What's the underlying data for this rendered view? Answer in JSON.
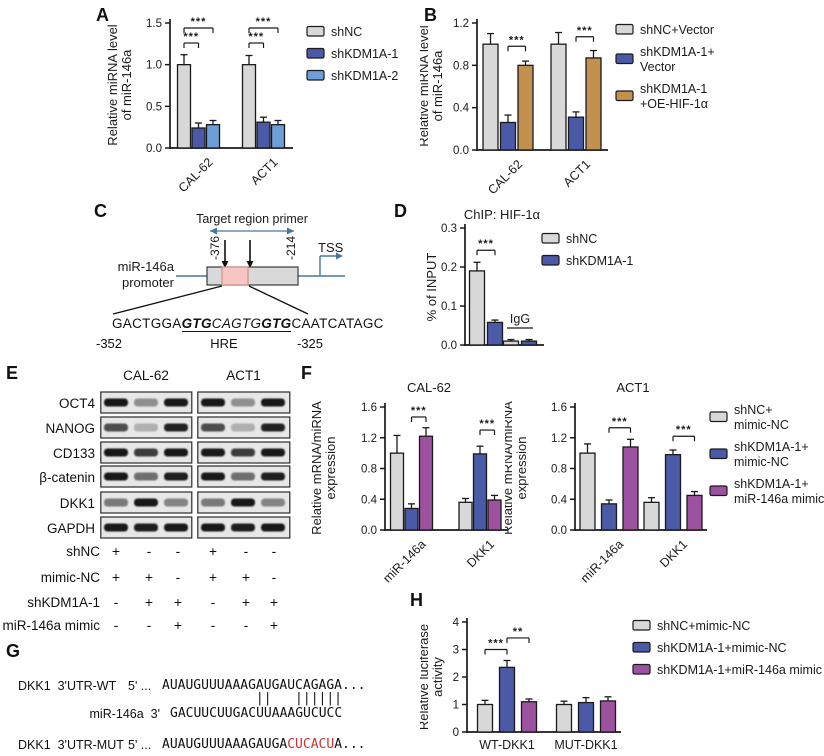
{
  "panels": {
    "A": "A",
    "B": "B",
    "C": "C",
    "D": "D",
    "E": "E",
    "F": "F",
    "G": "G",
    "H": "H"
  },
  "colors": {
    "gray": "#d8d8d8",
    "dark_blue": "#4c59a6",
    "light_blue": "#6d9ed8",
    "tan": "#c3914f",
    "purple": "#9d52a0",
    "axis": "#1a1a1a",
    "diagram_blue": "#46769e",
    "promoter_box": "#d9d9d9",
    "hre_pink": "#f7c6c3",
    "mutation_red": "#c9342c"
  },
  "chart_data": [
    {
      "id": "A",
      "type": "bar",
      "title": "",
      "categories": [
        "CAL-62",
        "ACT1"
      ],
      "series": [
        {
          "name": "shNC",
          "color": "#d8d8d8",
          "values": [
            1.0,
            1.0
          ],
          "errors": [
            0.12,
            0.11
          ]
        },
        {
          "name": "shKDM1A-1",
          "color": "#4c59a6",
          "values": [
            0.24,
            0.31
          ],
          "errors": [
            0.06,
            0.06
          ]
        },
        {
          "name": "shKDM1A-2",
          "color": "#6d9ed8",
          "values": [
            0.28,
            0.28
          ],
          "errors": [
            0.05,
            0.05
          ]
        }
      ],
      "ylabel": [
        "Relative miRNA level",
        "of miR-146a"
      ],
      "ylim": [
        0,
        1.5
      ],
      "yticks": [
        {
          "v": 0,
          "t": "0.0"
        },
        {
          "v": 0.5,
          "t": "0.5"
        },
        {
          "v": 1.0,
          "t": "1.0"
        },
        {
          "v": 1.5,
          "t": "1.5"
        }
      ],
      "significance": [
        {
          "group": 0,
          "from": 0,
          "to": 1,
          "y": 1.26,
          "label": "***"
        },
        {
          "group": 0,
          "from": 0,
          "to": 2,
          "y": 1.44,
          "label": "***"
        },
        {
          "group": 1,
          "from": 0,
          "to": 1,
          "y": 1.26,
          "label": "***"
        },
        {
          "group": 1,
          "from": 0,
          "to": 2,
          "y": 1.44,
          "label": "***"
        }
      ],
      "legend": {
        "items": [
          {
            "color": "#d8d8d8",
            "lines": [
              "shNC"
            ]
          },
          {
            "color": "#4c59a6",
            "lines": [
              "shKDM1A-1"
            ]
          },
          {
            "color": "#6d9ed8",
            "lines": [
              "shKDM1A-2"
            ]
          }
        ]
      },
      "grid": false,
      "legend_position": "right"
    },
    {
      "id": "B",
      "type": "bar",
      "title": "",
      "categories": [
        "CAL-62",
        "ACT1"
      ],
      "series": [
        {
          "name": "shNC+Vector",
          "color": "#d8d8d8",
          "values": [
            1.0,
            1.0
          ],
          "errors": [
            0.1,
            0.11
          ]
        },
        {
          "name": "shKDM1A-1+Vector",
          "color": "#4c59a6",
          "values": [
            0.26,
            0.31
          ],
          "errors": [
            0.07,
            0.05
          ]
        },
        {
          "name": "shKDM1A-1+OE-HIF-1α",
          "color": "#c3914f",
          "values": [
            0.8,
            0.87
          ],
          "errors": [
            0.04,
            0.07
          ]
        }
      ],
      "ylabel": [
        "Relative miRNA level",
        "of miR-146a"
      ],
      "ylim": [
        0,
        1.2
      ],
      "yticks": [
        {
          "v": 0,
          "t": "0.0"
        },
        {
          "v": 0.4,
          "t": "0.4"
        },
        {
          "v": 0.8,
          "t": "0.8"
        },
        {
          "v": 1.2,
          "t": "1.2"
        }
      ],
      "significance": [
        {
          "group": 0,
          "from": 1,
          "to": 2,
          "y": 0.98,
          "label": "***"
        },
        {
          "group": 1,
          "from": 1,
          "to": 2,
          "y": 1.07,
          "label": "***"
        }
      ],
      "legend": {
        "items": [
          {
            "color": "#d8d8d8",
            "lines": [
              "shNC+Vector"
            ]
          },
          {
            "color": "#4c59a6",
            "lines": [
              "shKDM1A-1+",
              "Vector"
            ]
          },
          {
            "color": "#c3914f",
            "lines": [
              "shKDM1A-1",
              "+OE-HIF-1α"
            ]
          }
        ]
      },
      "grid": false,
      "legend_position": "right"
    },
    {
      "id": "D",
      "type": "bar",
      "title": "ChIP:  HIF-1α",
      "categories": [
        "",
        ""
      ],
      "group_annotations": [
        {
          "group": 1,
          "label": "IgG"
        }
      ],
      "series": [
        {
          "name": "shNC",
          "color": "#d8d8d8",
          "values": [
            0.19,
            0.01
          ],
          "errors": [
            0.022,
            0.004
          ]
        },
        {
          "name": "shKDM1A-1",
          "color": "#4c59a6",
          "values": [
            0.058,
            0.01
          ],
          "errors": [
            0.006,
            0.004
          ]
        }
      ],
      "ylabel": [
        "% of INPUT"
      ],
      "ylim": [
        0,
        0.3
      ],
      "yticks": [
        {
          "v": 0,
          "t": "0.0"
        },
        {
          "v": 0.1,
          "t": "0.1"
        },
        {
          "v": 0.2,
          "t": "0.2"
        },
        {
          "v": 0.3,
          "t": "0.3"
        }
      ],
      "significance": [
        {
          "group": 0,
          "from": 0,
          "to": 1,
          "y": 0.243,
          "label": "***"
        }
      ],
      "legend": {
        "items": [
          {
            "color": "#d8d8d8",
            "lines": [
              "shNC"
            ]
          },
          {
            "color": "#4c59a6",
            "lines": [
              "shKDM1A-1"
            ]
          }
        ]
      },
      "grid": false,
      "legend_position": "right"
    },
    {
      "id": "F1",
      "type": "bar",
      "title": "CAL-62",
      "categories": [
        "miR-146a",
        "DKK1"
      ],
      "series": [
        {
          "name": "shNC+mimic-NC",
          "color": "#d8d8d8",
          "values": [
            1.0,
            0.36
          ],
          "errors": [
            0.23,
            0.05
          ]
        },
        {
          "name": "shKDM1A-1+mimic-NC",
          "color": "#4c59a6",
          "values": [
            0.28,
            0.99
          ],
          "errors": [
            0.06,
            0.1
          ]
        },
        {
          "name": "shKDM1A-1+miR-146a mimic",
          "color": "#9d52a0",
          "values": [
            1.22,
            0.39
          ],
          "errors": [
            0.11,
            0.06
          ]
        }
      ],
      "ylabel": [
        "Relative mRNA/miRNA",
        "expression"
      ],
      "ylim": [
        0,
        1.6
      ],
      "yticks": [
        {
          "v": 0,
          "t": "0.0"
        },
        {
          "v": 0.4,
          "t": "0.4"
        },
        {
          "v": 0.8,
          "t": "0.8"
        },
        {
          "v": 1.2,
          "t": "1.2"
        },
        {
          "v": 1.6,
          "t": "1.6"
        }
      ],
      "significance": [
        {
          "group": 0,
          "from": 1,
          "to": 2,
          "y": 1.47,
          "label": "***"
        },
        {
          "group": 1,
          "from": 1,
          "to": 2,
          "y": 1.3,
          "label": "***"
        }
      ],
      "grid": false
    },
    {
      "id": "F2",
      "type": "bar",
      "title": "ACT1",
      "categories": [
        "miR-146a",
        "DKK1"
      ],
      "series": [
        {
          "name": "shNC+mimic-NC",
          "color": "#d8d8d8",
          "values": [
            1.0,
            0.36
          ],
          "errors": [
            0.12,
            0.06
          ]
        },
        {
          "name": "shKDM1A-1+mimic-NC",
          "color": "#4c59a6",
          "values": [
            0.34,
            0.98
          ],
          "errors": [
            0.05,
            0.06
          ]
        },
        {
          "name": "shKDM1A-1+miR-146a mimic",
          "color": "#9d52a0",
          "values": [
            1.08,
            0.45
          ],
          "errors": [
            0.1,
            0.05
          ]
        }
      ],
      "ylabel": [
        "Relative mRNA/miRNA",
        "expression"
      ],
      "ylim": [
        0,
        1.6
      ],
      "yticks": [
        {
          "v": 0,
          "t": "0.0"
        },
        {
          "v": 0.4,
          "t": "0.4"
        },
        {
          "v": 0.8,
          "t": "0.8"
        },
        {
          "v": 1.2,
          "t": "1.2"
        },
        {
          "v": 1.6,
          "t": "1.6"
        }
      ],
      "significance": [
        {
          "group": 0,
          "from": 1,
          "to": 2,
          "y": 1.33,
          "label": "***"
        },
        {
          "group": 1,
          "from": 1,
          "to": 2,
          "y": 1.22,
          "label": "***"
        }
      ],
      "legend": {
        "items": [
          {
            "color": "#d8d8d8",
            "lines": [
              "shNC+",
              "mimic-NC"
            ]
          },
          {
            "color": "#4c59a6",
            "lines": [
              "shKDM1A-1+",
              "mimic-NC"
            ]
          },
          {
            "color": "#9d52a0",
            "lines": [
              "shKDM1A-1+",
              "miR-146a mimic"
            ]
          }
        ]
      },
      "grid": false,
      "legend_position": "right"
    },
    {
      "id": "H",
      "type": "bar",
      "title": "",
      "categories": [
        "WT-DKK1",
        "MUT-DKK1"
      ],
      "series": [
        {
          "name": "shNC+mimic-NC",
          "color": "#d8d8d8",
          "values": [
            1.0,
            1.0
          ],
          "errors": [
            0.15,
            0.12
          ]
        },
        {
          "name": "shKDM1A-1+mimic-NC",
          "color": "#4c59a6",
          "values": [
            2.35,
            1.07
          ],
          "errors": [
            0.25,
            0.18
          ]
        },
        {
          "name": "shKDM1A-1+miR-146a mimic",
          "color": "#9d52a0",
          "values": [
            1.1,
            1.13
          ],
          "errors": [
            0.1,
            0.15
          ]
        }
      ],
      "ylabel": [
        "Relative luciferase",
        "activity"
      ],
      "ylim": [
        0,
        4
      ],
      "yticks": [
        {
          "v": 0,
          "t": "0"
        },
        {
          "v": 1,
          "t": "1"
        },
        {
          "v": 2,
          "t": "2"
        },
        {
          "v": 3,
          "t": "3"
        },
        {
          "v": 4,
          "t": "4"
        }
      ],
      "significance": [
        {
          "group": 0,
          "from": 0,
          "to": 1,
          "y": 3.0,
          "label": "***"
        },
        {
          "group": 0,
          "from": 1,
          "to": 2,
          "y": 3.42,
          "label": "**"
        }
      ],
      "legend": {
        "items": [
          {
            "color": "#d8d8d8",
            "lines": [
              "shNC+mimic-NC"
            ]
          },
          {
            "color": "#4c59a6",
            "lines": [
              "shKDM1A-1+mimic-NC"
            ]
          },
          {
            "color": "#9d52a0",
            "lines": [
              "shKDM1A-1+miR-146a mimic"
            ]
          }
        ]
      },
      "grid": false,
      "legend_position": "right"
    }
  ],
  "panelC": {
    "primer_label": "Target region primer",
    "promoter_line1": "miR-146a",
    "promoter_line2": "promoter",
    "pos_left": "-376",
    "pos_right": "-214",
    "tss": "TSS",
    "seq_segments": [
      {
        "t": "GACTGGA",
        "style": "plain"
      },
      {
        "t": "GTG",
        "style": "bi-u"
      },
      {
        "t": "CA",
        "style": "it-u"
      },
      {
        "t": "GTG",
        "style": "it-u"
      },
      {
        "t": "GTG",
        "style": "bi-u"
      },
      {
        "t": "CAATCATAGC",
        "style": "plain"
      }
    ],
    "pos_start": "-352",
    "hre": "HRE",
    "pos_end": "-325"
  },
  "panelE": {
    "cell_lines": [
      "CAL-62",
      "ACT1"
    ],
    "antibodies": [
      "OCT4",
      "NANOG",
      "CD133",
      "β-catenin",
      "DKK1",
      "GAPDH"
    ],
    "band_intensities": [
      [
        0.95,
        0.4,
        0.95
      ],
      [
        0.7,
        0.25,
        0.9
      ],
      [
        0.95,
        0.78,
        0.95
      ],
      [
        0.95,
        0.55,
        0.92
      ],
      [
        0.5,
        0.95,
        0.45
      ],
      [
        0.95,
        0.92,
        0.95
      ]
    ],
    "conditions": [
      {
        "name": "shNC",
        "values": [
          "+",
          "-",
          "-",
          "+",
          "-",
          "-"
        ]
      },
      {
        "name": "mimic-NC",
        "values": [
          "+",
          "+",
          "-",
          "+",
          "+",
          "-"
        ]
      },
      {
        "name": "shKDM1A-1",
        "values": [
          "-",
          "+",
          "+",
          "-",
          "+",
          "+"
        ]
      },
      {
        "name": "miR-146a mimic",
        "values": [
          "-",
          "-",
          "+",
          "-",
          "-",
          "+"
        ]
      }
    ]
  },
  "panelG": {
    "wt_label": "DKK1  3'UTR-WT",
    "wt_prefix": "5' ...",
    "wt_seq": "AUAUGUUUAAAGAUGAUCAGAGA...",
    "pipes": "            ||   ||||||",
    "mir_label": "miR-146a  3'",
    "mir_seq": "GACUUCUUGACUUAAAGUCUCC",
    "mut_label": "DKK1  3'UTR-MUT",
    "mut_prefix": "5' ...",
    "mut_seq_pre": "AUAUGUUUAAAGAUGA",
    "mut_seq_red": "CUCACU",
    "mut_seq_post": "A..."
  }
}
